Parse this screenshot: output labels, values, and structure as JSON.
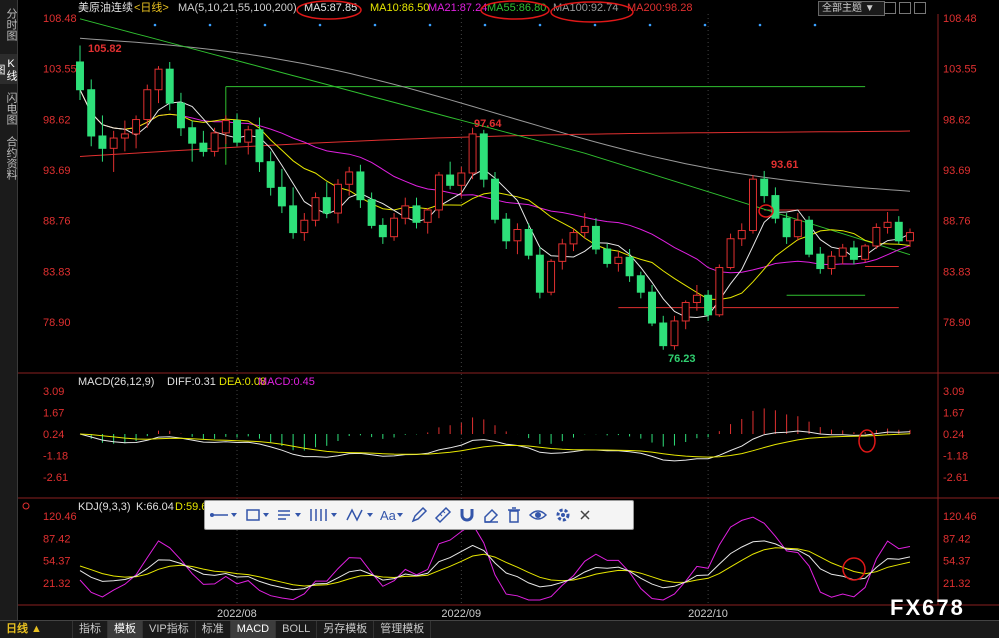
{
  "sidebar": {
    "tabs": [
      {
        "label": "分时图",
        "active": false
      },
      {
        "label": "K线图",
        "active": true
      },
      {
        "label": "闪电图",
        "active": false
      },
      {
        "label": "合约资料",
        "active": false
      }
    ]
  },
  "header": {
    "instrument": "美原油连续",
    "period": "<日线>",
    "ma_label": "MA(5,10,21,55,100,200)",
    "ma_values": [
      {
        "text": "MA5:87.85",
        "color": "#e8e8e8"
      },
      {
        "text": "MA10:86.50",
        "color": "#e6e600"
      },
      {
        "text": "MA21:87.24",
        "color": "#e020e0"
      },
      {
        "text": "MA55:86.80",
        "color": "#30c030"
      },
      {
        "text": "MA100:92.74",
        "color": "#999999"
      },
      {
        "text": "MA200:98.28",
        "color": "#e03030"
      }
    ],
    "theme_dropdown": "全部主题",
    "date_labels": [
      "2022/08",
      "2022/09",
      "2022/10"
    ],
    "watermark": "FX678"
  },
  "price_axis": [
    "108.48",
    "103.55",
    "98.62",
    "93.69",
    "88.76",
    "83.83",
    "78.90"
  ],
  "annotations": {
    "high": "105.82",
    "peak2": "97.64",
    "peak3": "93.61",
    "low": "76.23"
  },
  "macd": {
    "label": "MACD(26,12,9)",
    "diff": "DIFF:0.31",
    "dea": "DEA:0.08",
    "macd": "MACD:0.45",
    "axis": [
      "3.09",
      "1.67",
      "0.24",
      "-1.18",
      "-2.61"
    ]
  },
  "kdj": {
    "label": "KDJ(9,3,3)",
    "k": "K:66.04",
    "d": "D:59.6",
    "axis": [
      "120.46",
      "87.42",
      "54.37",
      "21.32"
    ]
  },
  "bottom_bar": {
    "period_button": "日线 ▲",
    "items": [
      {
        "label": "指标",
        "active": false
      },
      {
        "label": "模板",
        "active": true
      },
      {
        "label": "VIP指标",
        "active": false
      },
      {
        "label": "标准",
        "active": false
      },
      {
        "label": "MACD",
        "active": true
      },
      {
        "label": "BOLL",
        "active": false
      },
      {
        "label": "另存模板",
        "active": false
      },
      {
        "label": "管理模板",
        "active": false
      }
    ]
  },
  "colors": {
    "up": "#e03030",
    "down": "#2ee07a",
    "background": "#000000"
  },
  "chart_data": {
    "type": "candlestick",
    "instrument": "美原油连续",
    "period": "日线",
    "ylim": [
      76,
      108.5
    ],
    "x_tick_labels": [
      "2022/08",
      "2022/09",
      "2022/10"
    ],
    "ohlc": [
      [
        104.2,
        105.8,
        100.5,
        101.5
      ],
      [
        101.5,
        102.5,
        96.0,
        97.0
      ],
      [
        97.0,
        99.0,
        94.5,
        95.8
      ],
      [
        95.8,
        97.5,
        93.5,
        96.8
      ],
      [
        96.8,
        98.5,
        95.5,
        97.2
      ],
      [
        97.2,
        99.0,
        95.8,
        98.6
      ],
      [
        98.6,
        102.0,
        97.8,
        101.5
      ],
      [
        101.5,
        103.8,
        100.2,
        103.5
      ],
      [
        103.5,
        104.2,
        99.5,
        100.2
      ],
      [
        100.2,
        101.2,
        97.0,
        97.8
      ],
      [
        97.8,
        98.5,
        94.5,
        96.3
      ],
      [
        96.3,
        97.5,
        95.0,
        95.5
      ],
      [
        95.5,
        97.8,
        95.0,
        97.3
      ],
      [
        97.3,
        99.0,
        96.2,
        98.5
      ],
      [
        98.5,
        99.2,
        96.0,
        96.4
      ],
      [
        96.4,
        98.0,
        95.2,
        97.6
      ],
      [
        97.6,
        98.8,
        93.5,
        94.5
      ],
      [
        94.5,
        95.5,
        91.2,
        92.0
      ],
      [
        92.0,
        93.8,
        89.5,
        90.2
      ],
      [
        90.2,
        92.0,
        87.0,
        87.6
      ],
      [
        87.6,
        89.5,
        86.8,
        88.8
      ],
      [
        88.8,
        91.5,
        88.2,
        91.0
      ],
      [
        91.0,
        92.5,
        89.0,
        89.5
      ],
      [
        89.5,
        92.8,
        88.5,
        92.3
      ],
      [
        92.3,
        94.0,
        91.2,
        93.5
      ],
      [
        93.5,
        94.2,
        90.0,
        90.8
      ],
      [
        90.8,
        91.5,
        88.0,
        88.3
      ],
      [
        88.3,
        89.0,
        86.5,
        87.2
      ],
      [
        87.2,
        89.5,
        86.8,
        89.0
      ],
      [
        89.0,
        91.0,
        88.4,
        90.2
      ],
      [
        90.2,
        91.0,
        88.0,
        88.6
      ],
      [
        88.6,
        90.0,
        87.5,
        89.8
      ],
      [
        89.8,
        93.5,
        89.0,
        93.2
      ],
      [
        93.2,
        94.5,
        91.8,
        92.2
      ],
      [
        92.2,
        94.0,
        91.0,
        93.4
      ],
      [
        93.4,
        97.8,
        92.8,
        97.2
      ],
      [
        97.2,
        97.6,
        92.0,
        92.8
      ],
      [
        92.8,
        93.5,
        88.5,
        88.9
      ],
      [
        88.9,
        89.5,
        86.0,
        86.8
      ],
      [
        86.8,
        88.5,
        85.5,
        87.9
      ],
      [
        87.9,
        88.5,
        85.0,
        85.4
      ],
      [
        85.4,
        86.2,
        81.2,
        81.8
      ],
      [
        81.8,
        85.0,
        81.5,
        84.8
      ],
      [
        84.8,
        87.0,
        84.0,
        86.5
      ],
      [
        86.5,
        88.0,
        85.8,
        87.6
      ],
      [
        87.6,
        89.5,
        87.0,
        88.2
      ],
      [
        88.2,
        89.0,
        85.5,
        86.0
      ],
      [
        86.0,
        86.5,
        84.2,
        84.6
      ],
      [
        84.6,
        85.8,
        83.8,
        85.2
      ],
      [
        85.2,
        86.0,
        82.8,
        83.4
      ],
      [
        83.4,
        83.8,
        81.2,
        81.8
      ],
      [
        81.8,
        82.5,
        78.5,
        78.8
      ],
      [
        78.8,
        79.5,
        76.2,
        76.6
      ],
      [
        76.6,
        79.5,
        76.2,
        79.0
      ],
      [
        79.0,
        81.0,
        78.2,
        80.8
      ],
      [
        80.8,
        82.5,
        80.0,
        81.5
      ],
      [
        81.5,
        82.0,
        79.0,
        79.6
      ],
      [
        79.6,
        84.5,
        79.4,
        84.2
      ],
      [
        84.2,
        87.5,
        84.0,
        87.0
      ],
      [
        87.0,
        88.5,
        86.3,
        87.8
      ],
      [
        87.8,
        93.2,
        87.5,
        92.8
      ],
      [
        92.8,
        93.6,
        90.5,
        91.2
      ],
      [
        91.2,
        92.0,
        88.5,
        89.0
      ],
      [
        89.0,
        89.5,
        86.5,
        87.2
      ],
      [
        87.2,
        89.5,
        86.8,
        88.8
      ],
      [
        88.8,
        89.2,
        85.2,
        85.5
      ],
      [
        85.5,
        86.2,
        83.6,
        84.1
      ],
      [
        84.1,
        85.8,
        83.5,
        85.3
      ],
      [
        85.3,
        86.5,
        84.5,
        86.1
      ],
      [
        86.1,
        86.8,
        84.5,
        85.0
      ],
      [
        85.0,
        86.5,
        84.7,
        86.3
      ],
      [
        86.3,
        88.5,
        86.0,
        88.1
      ],
      [
        88.1,
        89.6,
        87.5,
        88.6
      ],
      [
        88.6,
        89.2,
        86.5,
        86.8
      ],
      [
        86.8,
        88.0,
        86.2,
        87.6
      ]
    ],
    "overlay_lines": [
      {
        "name": "MA5",
        "color": "#e8e8e8"
      },
      {
        "name": "MA10",
        "color": "#e6e600"
      },
      {
        "name": "MA21",
        "color": "#e020e0"
      },
      {
        "name": "MA55",
        "color": "#30c030"
      },
      {
        "name": "MA100",
        "color": "#999999"
      },
      {
        "name": "MA200",
        "color": "#e03030"
      }
    ],
    "horizontal_levels": [
      {
        "value": 101.8,
        "color": "#30c030"
      },
      {
        "value": 89.8,
        "color": "#e03030"
      },
      {
        "value": 84.3,
        "color": "#e03030"
      },
      {
        "value": 81.5,
        "color": "#30c030"
      },
      {
        "value": 80.3,
        "color": "#e03030"
      }
    ]
  }
}
